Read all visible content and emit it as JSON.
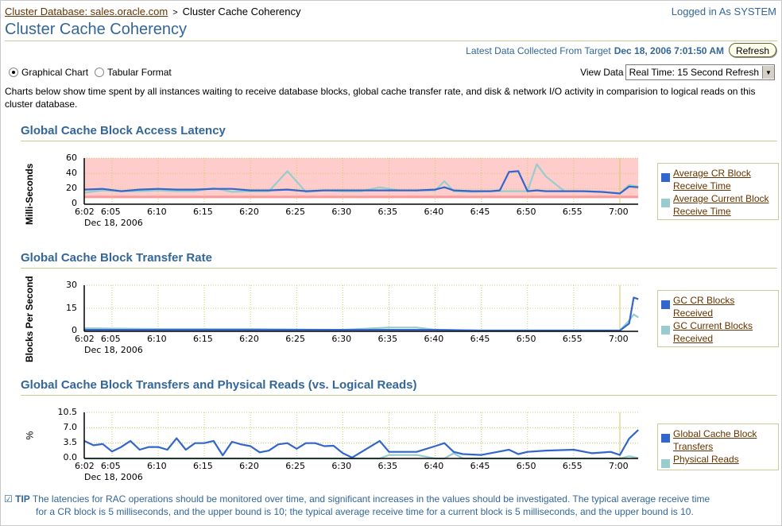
{
  "breadcrumb": {
    "parent": "Cluster Database: sales.oracle.com",
    "separator": ">",
    "current": "Cluster Cache Coherency"
  },
  "header": {
    "logged_in": "Logged in As SYSTEM",
    "title": "Cluster Cache Coherency",
    "latest_label": "Latest Data Collected From Target",
    "latest_value": "Dec 18, 2006 7:01:50 AM",
    "refresh_label": "Refresh"
  },
  "view_mode": {
    "options": [
      {
        "label": "Graphical Chart",
        "selected": true
      },
      {
        "label": "Tabular Format",
        "selected": false
      }
    ]
  },
  "view_data": {
    "label": "View Data",
    "selected": "Real Time: 15 Second Refresh"
  },
  "description": "Charts below show time spent by all instances waiting to receive database blocks, global cache transfer rate, and disk & network I/O activity in comparision to logical reads on this cluster database.",
  "colors": {
    "series_dark": "#3366cc",
    "series_light": "#99cccc",
    "threshold_fill": "#ffcccc",
    "threshold_line": "#ff9999",
    "grid": "#cccc66",
    "title": "#336699",
    "link": "#663300"
  },
  "tip": {
    "label": "TIP",
    "line1": "The latencies for RAC operations should be monitored over time, and significant increases in the values should be investigated. The typical average receive time",
    "line2": "for a CR block is 5 milliseconds, and the upper bound is 10; the typical average receive time for a current block is 5 milliseconds, and the upper bound is 10."
  },
  "chart_data": [
    {
      "type": "line",
      "title": "Global Cache Block Access Latency",
      "ylabel": "Milli-Seconds",
      "xlabel": "",
      "date_label": "Dec 18, 2006",
      "x_ticks": [
        "6:02",
        "6:05",
        "6:10",
        "6:15",
        "6:20",
        "6:25",
        "6:30",
        "6:35",
        "6:40",
        "6:45",
        "6:50",
        "6:55",
        "7:00"
      ],
      "y_ticks": [
        "0",
        "20",
        "40",
        "60"
      ],
      "ylim": [
        0,
        60
      ],
      "threshold_band": [
        10,
        60
      ],
      "legend": [
        "Average CR Block Receive Time",
        "Average Current Block Receive Time"
      ],
      "x": [
        "6:02",
        "6:04",
        "6:06",
        "6:08",
        "6:10",
        "6:12",
        "6:14",
        "6:16",
        "6:18",
        "6:20",
        "6:22",
        "6:24",
        "6:26",
        "6:28",
        "6:30",
        "6:32",
        "6:34",
        "6:36",
        "6:38",
        "6:40",
        "6:41",
        "6:42",
        "6:44",
        "6:46",
        "6:47",
        "6:48",
        "6:49",
        "6:50",
        "6:51",
        "6:52",
        "6:54",
        "6:56",
        "6:58",
        "7:00",
        "7:01",
        "7:02"
      ],
      "series": [
        {
          "name": "Average CR Block Receive Time",
          "values": [
            19,
            20,
            17,
            19,
            20,
            19,
            19,
            20,
            20,
            18,
            18,
            19,
            17,
            18,
            18,
            18,
            18,
            18,
            18,
            19,
            22,
            18,
            17,
            17,
            18,
            42,
            43,
            17,
            18,
            17,
            17,
            17,
            16,
            14,
            23,
            22
          ]
        },
        {
          "name": "Average Current Block Receive Time",
          "values": [
            15,
            18,
            17,
            17,
            18,
            17,
            17,
            21,
            16,
            17,
            17,
            43,
            16,
            18,
            17,
            17,
            22,
            18,
            18,
            18,
            30,
            17,
            16,
            17,
            17,
            17,
            17,
            17,
            52,
            36,
            17,
            17,
            16,
            14,
            25,
            23
          ]
        }
      ]
    },
    {
      "type": "line",
      "title": "Global Cache Block Transfer Rate",
      "ylabel": "Blocks Per Second",
      "xlabel": "",
      "date_label": "Dec 18, 2006",
      "x_ticks": [
        "6:02",
        "6:05",
        "6:10",
        "6:15",
        "6:20",
        "6:25",
        "6:30",
        "6:35",
        "6:40",
        "6:45",
        "6:50",
        "6:55",
        "7:00"
      ],
      "y_ticks": [
        "0",
        "15",
        "30"
      ],
      "ylim": [
        0,
        30
      ],
      "legend": [
        "GC CR Blocks Received",
        "GC Current Blocks Received"
      ],
      "x": [
        "6:02",
        "6:10",
        "6:20",
        "6:30",
        "6:35",
        "6:38",
        "6:40",
        "6:45",
        "6:50",
        "6:55",
        "7:00",
        "7:01",
        "7:01.5",
        "7:02"
      ],
      "series": [
        {
          "name": "GC CR Blocks Received",
          "values": [
            1,
            1,
            1,
            1,
            1,
            1,
            1,
            0.5,
            0.5,
            0.5,
            0.5,
            5,
            22,
            21
          ]
        },
        {
          "name": "GC Current Blocks Received",
          "values": [
            2,
            1.5,
            1.5,
            1,
            2.5,
            2.5,
            1,
            0.5,
            0.5,
            0.5,
            0.5,
            7,
            11,
            9
          ]
        }
      ]
    },
    {
      "type": "line",
      "title": "Global Cache Block Transfers and Physical Reads (vs. Logical Reads)",
      "ylabel": "%",
      "xlabel": "",
      "date_label": "Dec 18, 2006",
      "x_ticks": [
        "6:02",
        "6:05",
        "6:10",
        "6:15",
        "6:20",
        "6:25",
        "6:30",
        "6:35",
        "6:40",
        "6:45",
        "6:50",
        "6:55",
        "7:00"
      ],
      "y_ticks": [
        "0.0",
        "3.5",
        "7.0",
        "10.5"
      ],
      "ylim": [
        0,
        10.5
      ],
      "legend": [
        "Global Cache Block Transfers",
        "Physical Reads"
      ],
      "x": [
        "6:02",
        "6:03",
        "6:04",
        "6:05",
        "6:06",
        "6:07",
        "6:08",
        "6:09",
        "6:10",
        "6:11",
        "6:12",
        "6:13",
        "6:14",
        "6:15",
        "6:16",
        "6:17",
        "6:18",
        "6:19",
        "6:20",
        "6:21",
        "6:22",
        "6:23",
        "6:24",
        "6:25",
        "6:26",
        "6:27",
        "6:28",
        "6:29",
        "6:30",
        "6:31",
        "6:34",
        "6:35",
        "6:38",
        "6:40",
        "6:41",
        "6:42",
        "6:43",
        "6:45",
        "6:47",
        "6:48",
        "6:49",
        "6:50",
        "6:52",
        "6:55",
        "6:57",
        "6:59",
        "7:00",
        "7:01",
        "7:02"
      ],
      "series": [
        {
          "name": "Global Cache Block Transfers",
          "values": [
            4.0,
            3.0,
            3.3,
            1.6,
            2.6,
            4.0,
            2.0,
            2.6,
            2.6,
            2.0,
            4.6,
            2.0,
            3.5,
            3.5,
            4.0,
            0.7,
            3.8,
            3.2,
            2.8,
            1.4,
            1.8,
            3.2,
            3.5,
            2.2,
            3.5,
            3.5,
            2.8,
            2.9,
            1.2,
            0.2,
            4.0,
            1.5,
            1.5,
            2.8,
            3.5,
            1.5,
            1.0,
            0.8,
            1.6,
            2.0,
            1.0,
            1.5,
            1.8,
            2.0,
            1.2,
            1.5,
            0.8,
            4.5,
            6.5
          ]
        },
        {
          "name": "Physical Reads",
          "values": [
            0,
            0,
            0,
            0,
            0,
            0,
            0,
            0,
            0,
            0,
            0,
            0,
            0,
            0,
            0,
            0,
            0,
            0,
            0,
            0,
            0,
            0,
            0,
            0,
            0,
            0,
            0,
            0,
            0,
            0,
            0,
            0.8,
            0.8,
            0,
            0,
            1.2,
            0,
            0,
            0,
            0,
            0,
            0,
            0,
            0,
            0,
            0,
            0,
            0.5,
            0.1
          ]
        }
      ]
    }
  ]
}
